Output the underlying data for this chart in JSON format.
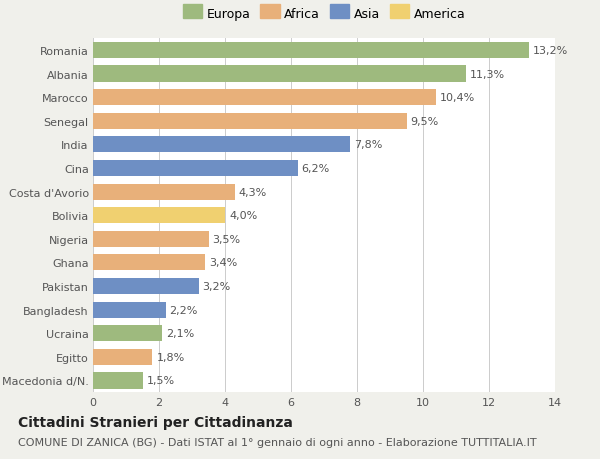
{
  "countries": [
    "Romania",
    "Albania",
    "Marocco",
    "Senegal",
    "India",
    "Cina",
    "Costa d'Avorio",
    "Bolivia",
    "Nigeria",
    "Ghana",
    "Pakistan",
    "Bangladesh",
    "Ucraina",
    "Egitto",
    "Macedonia d/N."
  ],
  "values": [
    13.2,
    11.3,
    10.4,
    9.5,
    7.8,
    6.2,
    4.3,
    4.0,
    3.5,
    3.4,
    3.2,
    2.2,
    2.1,
    1.8,
    1.5
  ],
  "labels": [
    "13,2%",
    "11,3%",
    "10,4%",
    "9,5%",
    "7,8%",
    "6,2%",
    "4,3%",
    "4,0%",
    "3,5%",
    "3,4%",
    "3,2%",
    "2,2%",
    "2,1%",
    "1,8%",
    "1,5%"
  ],
  "categories": [
    "Europa",
    "Africa",
    "Asia",
    "America"
  ],
  "bar_colors": [
    "#9eba7e",
    "#9eba7e",
    "#e8b07a",
    "#e8b07a",
    "#6e8fc4",
    "#6e8fc4",
    "#e8b07a",
    "#f0d070",
    "#e8b07a",
    "#e8b07a",
    "#6e8fc4",
    "#6e8fc4",
    "#9eba7e",
    "#e8b07a",
    "#9eba7e"
  ],
  "legend_colors": [
    "#9eba7e",
    "#e8b07a",
    "#6e8fc4",
    "#f0d070"
  ],
  "title": "Cittadini Stranieri per Cittadinanza",
  "subtitle": "COMUNE DI ZANICA (BG) - Dati ISTAT al 1° gennaio di ogni anno - Elaborazione TUTTITALIA.IT",
  "xlim": [
    0,
    14
  ],
  "xticks": [
    0,
    2,
    4,
    6,
    8,
    10,
    12,
    14
  ],
  "background_color": "#f0f0eb",
  "bar_background": "#ffffff",
  "grid_color": "#cccccc",
  "label_fontsize": 8,
  "tick_fontsize": 8,
  "legend_fontsize": 9,
  "title_fontsize": 10,
  "subtitle_fontsize": 8
}
